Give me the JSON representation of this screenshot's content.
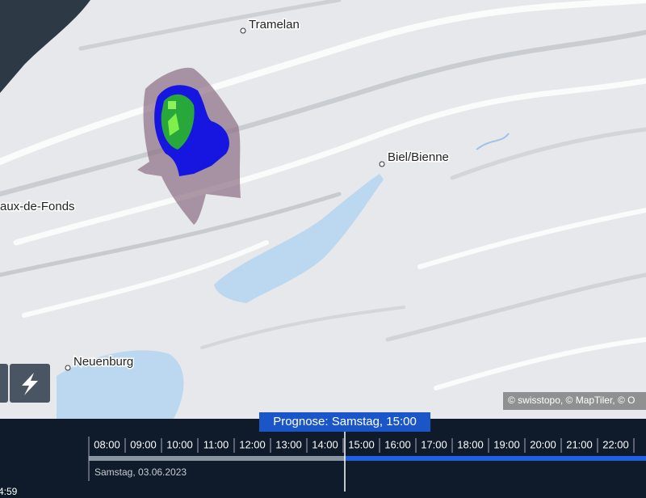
{
  "map": {
    "places": [
      {
        "label": "Tramelan"
      },
      {
        "label": "Biel/Bienne"
      },
      {
        "label": "aux-de-Fonds"
      },
      {
        "label": "Neuenburg"
      }
    ],
    "attribution": "© swisstopo, © MapTiler, © O"
  },
  "timeline": {
    "forecast_label": "Prognose: Samstag, 15:00",
    "hours": [
      "08:00",
      "09:00",
      "10:00",
      "11:00",
      "12:00",
      "13:00",
      "14:00",
      "15:00",
      "16:00",
      "17:00",
      "18:00",
      "19:00",
      "20:00",
      "21:00",
      "22:00"
    ],
    "date": "Samstag, 03.06.2023",
    "time": "4:59"
  }
}
